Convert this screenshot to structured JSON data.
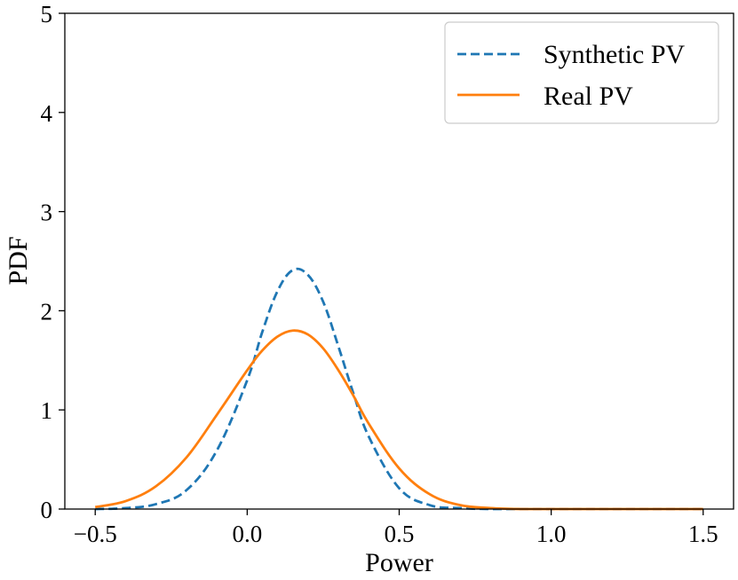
{
  "chart_data": {
    "type": "line",
    "title": "",
    "xlabel": "Power",
    "ylabel": "PDF",
    "xlim": [
      -0.6,
      1.6
    ],
    "ylim": [
      0,
      5
    ],
    "xticks": [
      -0.5,
      0.0,
      0.5,
      1.0,
      1.5
    ],
    "xtick_labels": [
      "−0.5",
      "0.0",
      "0.5",
      "1.0",
      "1.5"
    ],
    "yticks": [
      0,
      1,
      2,
      3,
      4,
      5
    ],
    "ytick_labels": [
      "0",
      "1",
      "2",
      "3",
      "4",
      "5"
    ],
    "grid": false,
    "legend_position": "top-right",
    "series": [
      {
        "name": "Synthetic PV",
        "style": "dashed",
        "color": "#1f77b4",
        "x": [
          -0.5,
          -0.4,
          -0.3,
          -0.2,
          -0.1,
          0.0,
          0.05,
          0.1,
          0.15,
          0.2,
          0.25,
          0.3,
          0.35,
          0.4,
          0.5,
          0.6,
          0.7,
          0.8,
          0.9,
          1.0,
          1.5
        ],
        "y": [
          0.0,
          0.01,
          0.05,
          0.19,
          0.59,
          1.3,
          1.79,
          2.2,
          2.41,
          2.36,
          2.09,
          1.64,
          1.16,
          0.73,
          0.21,
          0.04,
          0.01,
          0.0,
          0.0,
          0.0,
          0.0
        ]
      },
      {
        "name": "Real PV",
        "style": "solid",
        "color": "#ff7f0e",
        "x": [
          -0.5,
          -0.4,
          -0.3,
          -0.2,
          -0.1,
          0.0,
          0.05,
          0.1,
          0.15,
          0.2,
          0.25,
          0.3,
          0.35,
          0.4,
          0.5,
          0.6,
          0.7,
          0.8,
          0.9,
          1.0,
          1.5
        ],
        "y": [
          0.02,
          0.08,
          0.23,
          0.52,
          0.95,
          1.4,
          1.6,
          1.74,
          1.8,
          1.76,
          1.62,
          1.4,
          1.14,
          0.86,
          0.41,
          0.15,
          0.04,
          0.01,
          0.0,
          0.0,
          0.0
        ]
      }
    ]
  }
}
